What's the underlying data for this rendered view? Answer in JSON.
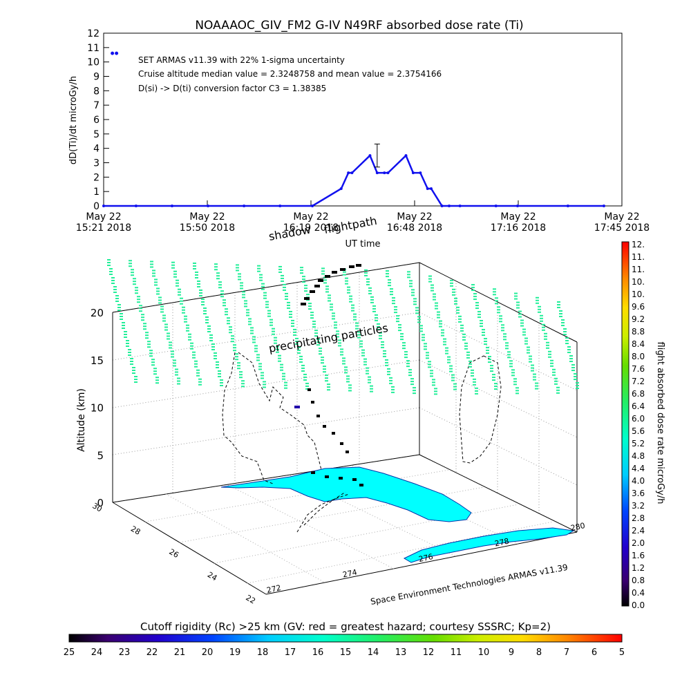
{
  "colors": {
    "series": "#1111ee",
    "axis": "#000000",
    "grid": "#888888",
    "land": "#00ffff",
    "particles": "#22ee99",
    "flightpath": "#000000"
  },
  "top_chart": {
    "title": "NOAAAOC_GIV_FM2 G-IV    N49RF  absorbed dose rate (Ti)",
    "ylabel": "dD(Ti)/dt microGy/h",
    "xlabel": "UT time",
    "annotations": [
      "SET ARMAS v11.39 with 22% 1-sigma uncertainty",
      "Cruise altitude median value = 2.3248758 and mean value = 2.3754166",
      "D(si) -> D(ti) conversion factor C3 = 1.38385"
    ],
    "y_ticks": [
      "0",
      "1",
      "2",
      "3",
      "4",
      "5",
      "6",
      "7",
      "8",
      "9",
      "10",
      "11",
      "12"
    ],
    "x_ticks": [
      {
        "date": "May 22",
        "time": "15:21 2018"
      },
      {
        "date": "May 22",
        "time": "15:50 2018"
      },
      {
        "date": "May 22",
        "time": "16:19 2018"
      },
      {
        "date": "May 22",
        "time": "16:48 2018"
      },
      {
        "date": "May 22",
        "time": "17:16 2018"
      },
      {
        "date": "May 22",
        "time": "17:45 2018"
      }
    ]
  },
  "chart_data": [
    {
      "type": "line",
      "title": "NOAAAOC_GIV_FM2 G-IV    N49RF  absorbed dose rate (Ti)",
      "xlabel": "UT time",
      "ylabel": "dD(Ti)/dt microGy/h",
      "ylim": [
        0,
        12
      ],
      "xlim": [
        "15:21",
        "17:45"
      ],
      "grid": false,
      "series": [
        {
          "x": [
            "15:21",
            "15:30",
            "15:40",
            "15:50",
            "16:00",
            "16:10",
            "16:19",
            "16:27",
            "16:29",
            "16:30",
            "16:35",
            "16:37",
            "16:39",
            "16:40",
            "16:45",
            "16:47",
            "16:49",
            "16:51",
            "16:52",
            "16:55",
            "16:57",
            "17:00",
            "17:10",
            "17:16",
            "17:30",
            "17:40"
          ],
          "values": [
            0,
            0,
            0,
            0,
            0,
            0,
            0,
            1.2,
            2.3,
            2.3,
            3.5,
            2.3,
            2.3,
            2.3,
            3.5,
            2.3,
            2.3,
            1.2,
            1.2,
            0,
            0,
            0,
            0,
            0,
            0,
            0
          ]
        }
      ],
      "error_bar": {
        "x": "16:37",
        "value": 3.5,
        "low": 2.7,
        "high": 4.3
      },
      "outliers": [
        {
          "x": "15:24",
          "value": 10.6
        }
      ]
    },
    {
      "type": "scatter",
      "title": "",
      "zlabel": "Altitude (km)",
      "z_ticks": [
        "0",
        "5",
        "10",
        "15",
        "20"
      ],
      "y_ticks": [
        "30",
        "28",
        "26",
        "24",
        "22"
      ],
      "x_ticks": [
        "272",
        "274",
        "276",
        "278",
        "280"
      ],
      "labels": [
        "shadow",
        "flightpath",
        "precipitating particles",
        "Space Environment Technologies ARMAS v11.39"
      ]
    }
  ],
  "colorbar_right": {
    "label": "flight absorbed dose rate microGy/h",
    "ticks": [
      "12.",
      "11.",
      "11.",
      "10.",
      "10.",
      "9.6",
      "9.2",
      "8.8",
      "8.4",
      "8.0",
      "7.6",
      "7.2",
      "6.8",
      "6.4",
      "6.0",
      "5.6",
      "5.2",
      "4.8",
      "4.4",
      "4.0",
      "3.6",
      "3.2",
      "2.8",
      "2.4",
      "2.0",
      "1.6",
      "1.2",
      "0.8",
      "0.4",
      "0.0"
    ]
  },
  "colorbar_bottom": {
    "label": "Cutoff rigidity (Rc) >25 km (GV: red = greatest hazard; courtesy SSSRC; Kp=2)",
    "ticks": [
      "25",
      "24",
      "23",
      "22",
      "21",
      "20",
      "19",
      "18",
      "17",
      "16",
      "15",
      "14",
      "13",
      "12",
      "11",
      "10",
      "9",
      "8",
      "7",
      "6",
      "5"
    ]
  }
}
